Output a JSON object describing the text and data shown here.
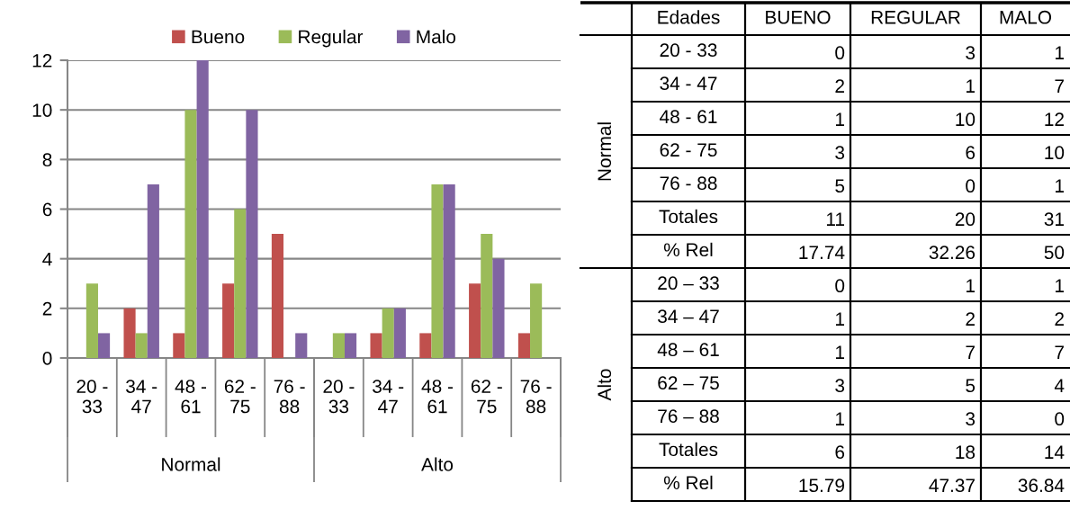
{
  "chart_data": [
    {
      "type": "bar",
      "categories": [
        "20 - 33",
        "34 - 47",
        "48 - 61",
        "62 - 75",
        "76 - 88",
        "20 - 33",
        "34 - 47",
        "48 - 61",
        "62 - 75",
        "76 - 88"
      ],
      "series": [
        {
          "name": "Bueno",
          "color": "#c0504d",
          "values": [
            0,
            2,
            1,
            3,
            5,
            0,
            1,
            1,
            3,
            1
          ]
        },
        {
          "name": "Regular",
          "color": "#9bbb59",
          "values": [
            3,
            1,
            10,
            6,
            0,
            1,
            2,
            7,
            5,
            3
          ]
        },
        {
          "name": "Malo",
          "color": "#8064a2",
          "values": [
            1,
            7,
            12,
            10,
            1,
            1,
            2,
            7,
            4,
            0
          ]
        }
      ],
      "ylim": [
        0,
        12
      ],
      "yticks": [
        0,
        2,
        4,
        6,
        8,
        10,
        12
      ],
      "grid": "y",
      "legend": "top",
      "annotations": [
        "Normal",
        "Alto"
      ]
    },
    {
      "type": "other",
      "ylabel": "Edades",
      "categories": [
        "BUENO",
        "REGULAR",
        "MALO"
      ],
      "y_categories": [
        "20 - 33",
        "34 - 47",
        "48 - 61",
        "62 - 75",
        "76 - 88",
        "Totales",
        "% Rel",
        "20 – 33",
        "34 – 47",
        "48 – 61",
        "62 – 75",
        "76 – 88",
        "Totales",
        "% Rel"
      ],
      "cell_labels": [
        [
          "0",
          "3",
          "1"
        ],
        [
          "2",
          "1",
          "7"
        ],
        [
          "1",
          "10",
          "12"
        ],
        [
          "3",
          "6",
          "10"
        ],
        [
          "5",
          "0",
          "1"
        ],
        [
          "11",
          "20",
          "31"
        ],
        [
          "17.74",
          "32.26",
          "50"
        ],
        [
          "0",
          "1",
          "1"
        ],
        [
          "1",
          "2",
          "2"
        ],
        [
          "1",
          "7",
          "7"
        ],
        [
          "3",
          "5",
          "4"
        ],
        [
          "1",
          "3",
          "0"
        ],
        [
          "6",
          "18",
          "14"
        ],
        [
          "15.79",
          "47.37",
          "36.84"
        ]
      ],
      "annotations": [
        "Normal",
        "Alto"
      ]
    }
  ]
}
